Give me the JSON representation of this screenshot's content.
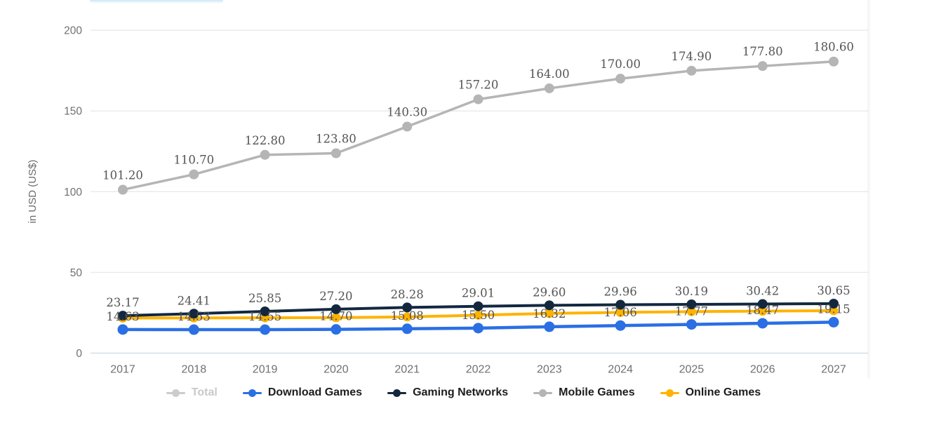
{
  "chart_data": {
    "type": "line",
    "title": "",
    "xlabel": "",
    "ylabel": "in USD (US$)",
    "x": [
      2017,
      2018,
      2019,
      2020,
      2021,
      2022,
      2023,
      2024,
      2025,
      2026,
      2027
    ],
    "y_ticks": [
      0,
      50,
      100,
      150,
      200
    ],
    "ylim": [
      0,
      210
    ],
    "grid": true,
    "legend_position": "bottom",
    "draw_order": [
      "Mobile Games",
      "Online Games",
      "Gaming Networks",
      "Download Games"
    ],
    "series": [
      {
        "name": "Total",
        "color": "#cccccc",
        "enabled": false,
        "values": null
      },
      {
        "name": "Download Games",
        "color": "#2b6fe4",
        "enabled": true,
        "values": [
          14.63,
          14.53,
          14.55,
          14.7,
          15.08,
          15.5,
          16.32,
          17.06,
          17.77,
          18.47,
          19.15
        ],
        "labels": [
          "14.63",
          "14.53",
          "14.55",
          "14.70",
          "15.08",
          "15.50",
          "16.32",
          "17.06",
          "17.77",
          "18.47",
          "19.15"
        ]
      },
      {
        "name": "Gaming Networks",
        "color": "#13283f",
        "enabled": true,
        "values": [
          23.17,
          24.41,
          25.85,
          27.2,
          28.28,
          29.01,
          29.6,
          29.96,
          30.19,
          30.42,
          30.65
        ],
        "labels": [
          "23.17",
          "24.41",
          "25.85",
          "27.20",
          "28.28",
          "29.01",
          "29.60",
          "29.96",
          "30.19",
          "30.42",
          "30.65"
        ]
      },
      {
        "name": "Mobile Games",
        "color": "#b5b5b5",
        "enabled": true,
        "values": [
          101.2,
          110.7,
          122.8,
          123.8,
          140.3,
          157.2,
          164.0,
          170.0,
          174.9,
          177.8,
          180.6
        ],
        "labels": [
          "101.20",
          "110.70",
          "122.80",
          "123.80",
          "140.30",
          "157.20",
          "164.00",
          "170.00",
          "174.90",
          "177.80",
          "180.60"
        ]
      },
      {
        "name": "Online Games",
        "color": "#ffb300",
        "enabled": true,
        "values_estimated_from_pixels": true,
        "values": [
          21.7,
          21.8,
          21.9,
          22.0,
          22.4,
          23.5,
          24.6,
          25.2,
          25.7,
          26.0,
          26.3
        ],
        "labels": null
      }
    ],
    "colors": {
      "grid_line": "#e8e8e8",
      "zero_axis_line": "#ccd8e8",
      "axis_text": "#707070",
      "value_label_text": "#545454",
      "legend_text": "#1d1d1f",
      "legend_disabled": "#c9c9c9"
    }
  }
}
